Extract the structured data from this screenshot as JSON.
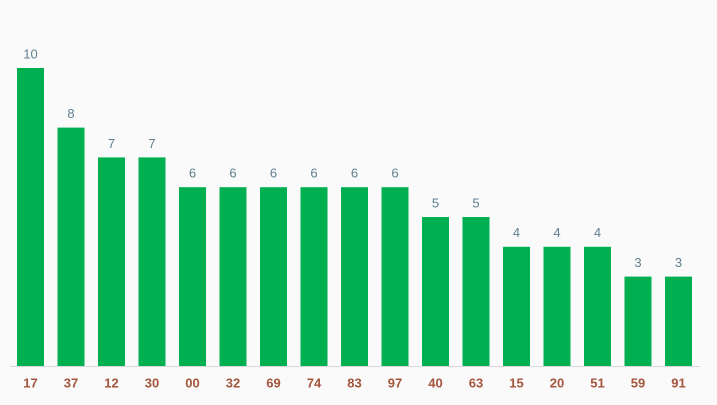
{
  "chart_data": {
    "type": "bar",
    "categories": [
      "17",
      "37",
      "12",
      "30",
      "00",
      "32",
      "69",
      "74",
      "83",
      "97",
      "40",
      "63",
      "15",
      "20",
      "51",
      "59",
      "91"
    ],
    "values": [
      10,
      8,
      7,
      7,
      6,
      6,
      6,
      6,
      6,
      6,
      5,
      5,
      4,
      4,
      4,
      3,
      3
    ],
    "color": "#00b050"
  }
}
